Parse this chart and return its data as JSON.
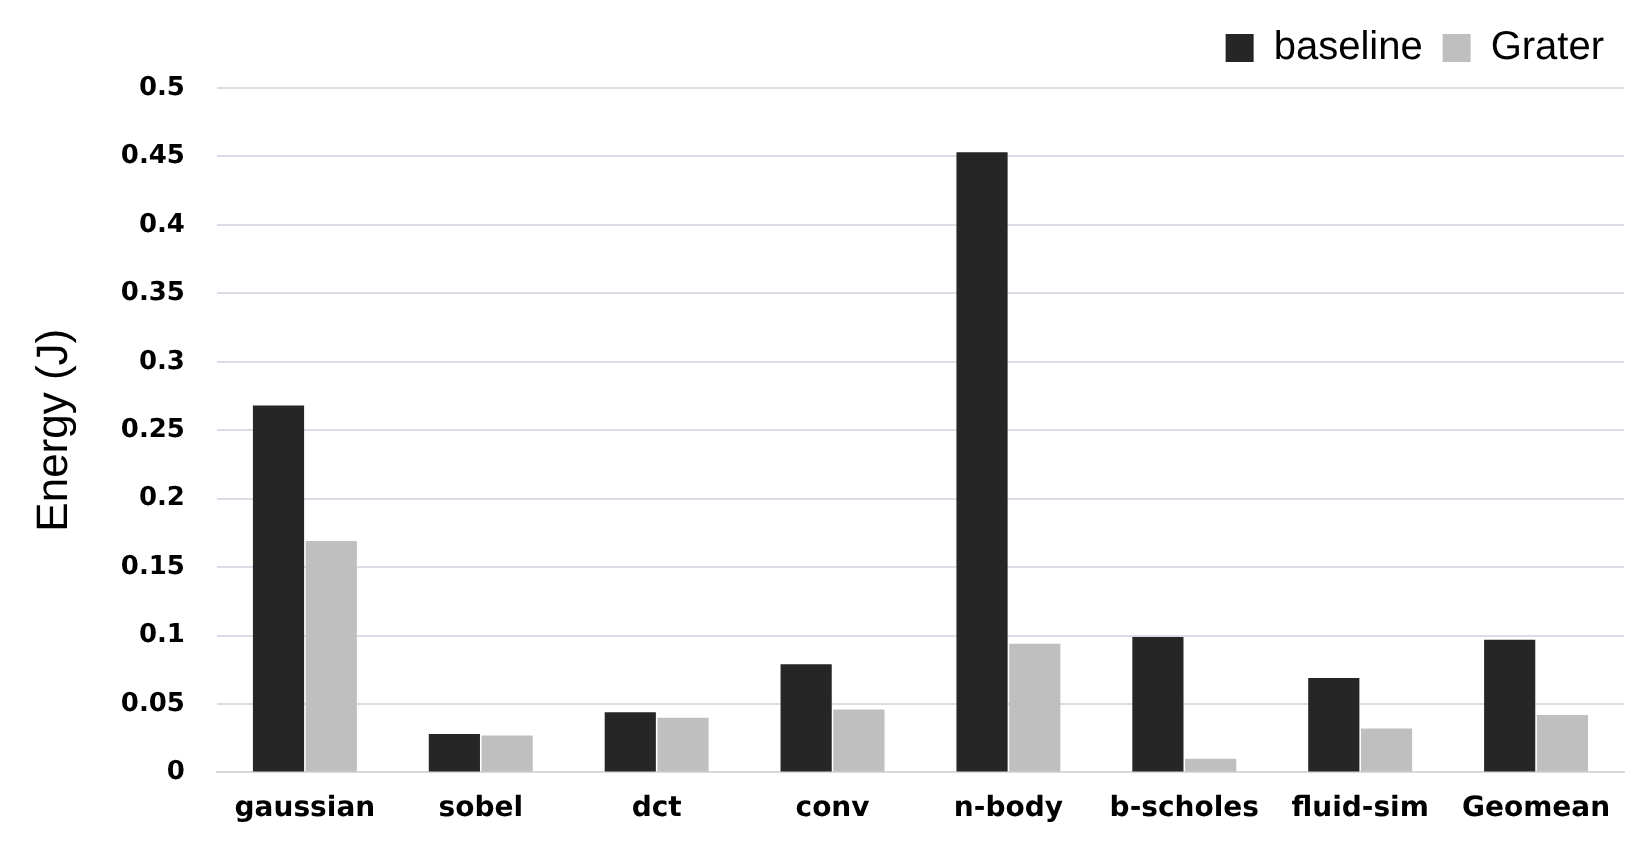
{
  "chart_data": {
    "type": "bar",
    "ylabel": "Energy (J)",
    "categories": [
      "gaussian",
      "sobel",
      "dct",
      "conv",
      "n-body",
      "b-scholes",
      "fluid-sim",
      "Geomean"
    ],
    "series": [
      {
        "name": "baseline",
        "color": "#262626",
        "values": [
          0.268,
          0.028,
          0.044,
          0.079,
          0.453,
          0.099,
          0.069,
          0.097
        ]
      },
      {
        "name": "Grater",
        "color": "#bfbfbf",
        "values": [
          0.169,
          0.027,
          0.04,
          0.046,
          0.094,
          0.01,
          0.032,
          0.042
        ]
      }
    ],
    "ylim": [
      0,
      0.5
    ],
    "yticks": [
      0,
      0.05,
      0.1,
      0.15,
      0.2,
      0.25,
      0.3,
      0.35,
      0.4,
      0.45,
      0.5
    ],
    "grid": "y",
    "legend": "top right"
  }
}
